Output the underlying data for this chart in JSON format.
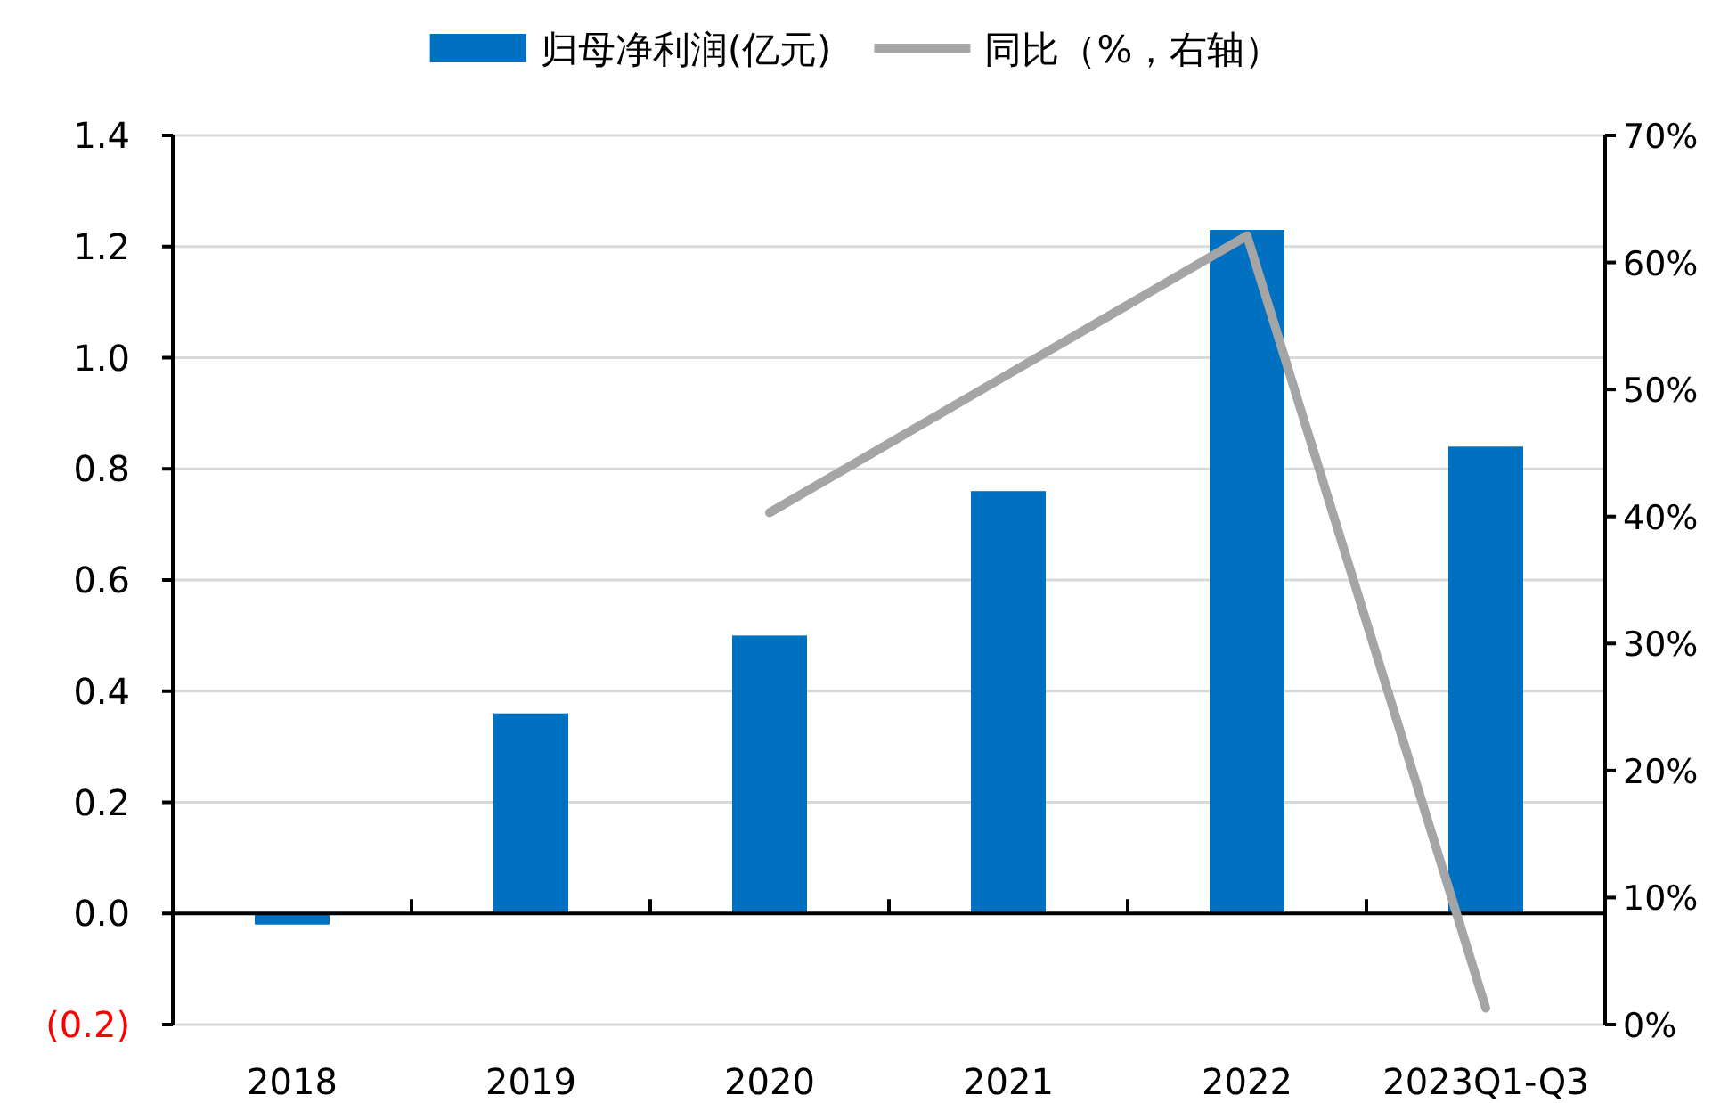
{
  "chart_data": {
    "type": "bar",
    "categories": [
      "2018",
      "2019",
      "2020",
      "2021",
      "2022",
      "2023Q1-Q3"
    ],
    "series": [
      {
        "name": "归母净利润(亿元)",
        "color": "#0070c0",
        "values": [
          -0.02,
          0.36,
          0.5,
          0.76,
          1.23,
          0.84
        ]
      },
      {
        "name": "同比（%，右轴）",
        "type": "line",
        "axis": "y2",
        "color": "#a5a5a5",
        "values": [
          null,
          null,
          40.3,
          51.2,
          62.1,
          1.3
        ]
      }
    ],
    "ylim": [
      -0.2,
      1.4
    ],
    "yticks": [
      {
        "value": -0.2,
        "label": "(0.2)"
      },
      {
        "value": 0,
        "label": "0.0"
      },
      0.2,
      0.4,
      0.6,
      0.8,
      {
        "value": 1,
        "label": "1.0"
      },
      1.2,
      1.4
    ],
    "y2lim": [
      0,
      70
    ],
    "y2ticks": [
      {
        "value": 0,
        "label": "0%"
      },
      {
        "value": 10,
        "label": "10%"
      },
      {
        "value": 20,
        "label": "20%"
      },
      {
        "value": 30,
        "label": "30%"
      },
      {
        "value": 40,
        "label": "40%"
      },
      {
        "value": 50,
        "label": "50%"
      },
      {
        "value": 60,
        "label": "60%"
      },
      {
        "value": 70,
        "label": "70%"
      }
    ],
    "grid": "y",
    "legend": "top"
  }
}
